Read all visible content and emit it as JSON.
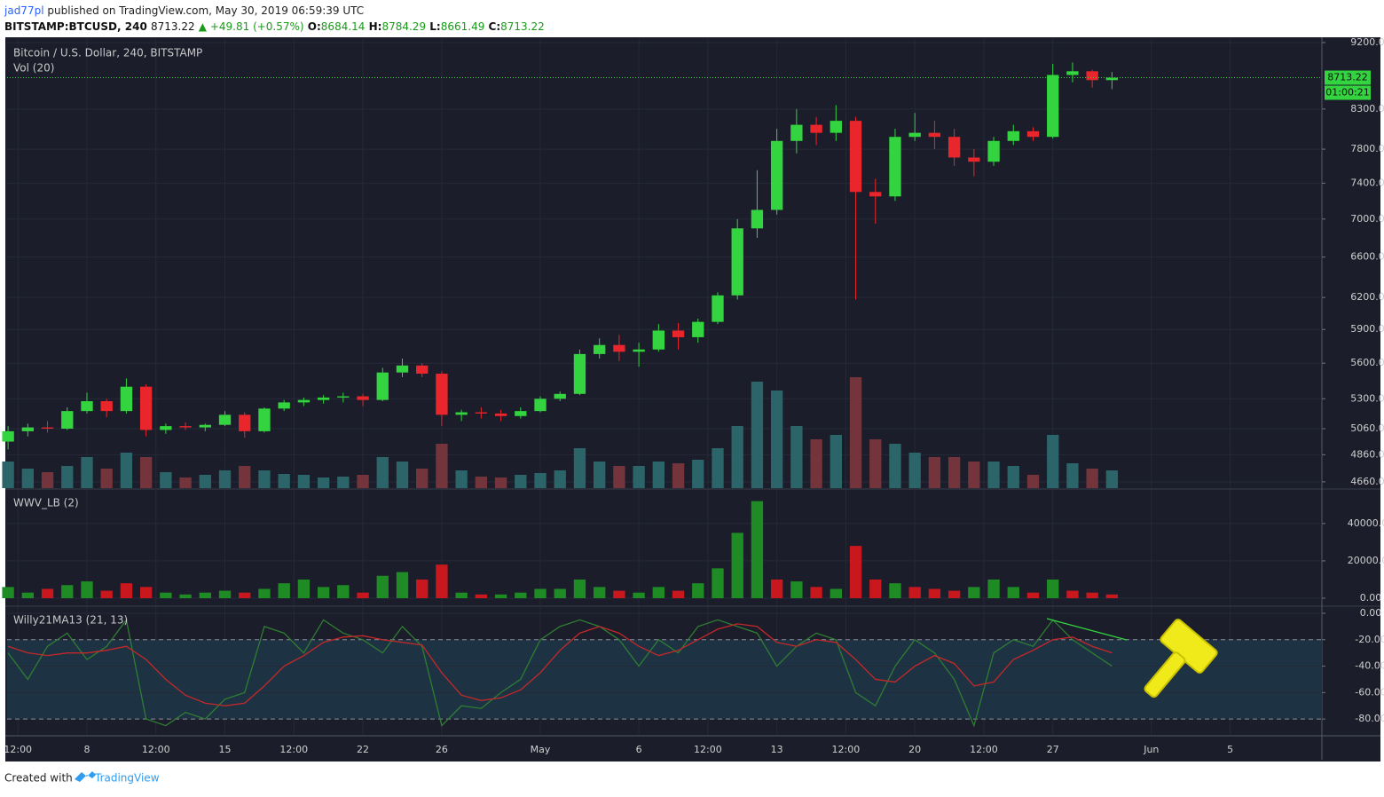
{
  "header": {
    "author": "jad77pl",
    "published": "published on TradingView.com, May 30, 2019 06:59:39 UTC",
    "symbol": "BITSTAMP:BTCUSD, 240",
    "price": "8713.22",
    "change": "▲ +49.81 (+0.57%)",
    "ohlc": [
      {
        "label": "O:",
        "value": "8684.14"
      },
      {
        "label": "H:",
        "value": "8784.29"
      },
      {
        "label": "L:",
        "value": "8661.49"
      },
      {
        "label": "C:",
        "value": "8713.22"
      }
    ]
  },
  "footer": {
    "created": "Created with",
    "brand": "TradingView"
  },
  "chart_data": [
    {
      "type": "candlestick",
      "title": "Bitcoin / U.S. Dollar, 240, BITSTAMP",
      "volume_label": "Vol (20)",
      "log": true,
      "grid": true,
      "up_color": "#33d43f",
      "down_color": "#e8262c",
      "volume_up_color": "#2b6469",
      "volume_down_color": "#74343c",
      "x": [
        4,
        5,
        6,
        7,
        8,
        9,
        10,
        11,
        12,
        13,
        14,
        15,
        16,
        17,
        18,
        19,
        20,
        21,
        22,
        23,
        24,
        25,
        26,
        27,
        28,
        29,
        30,
        31,
        32,
        33,
        34,
        35,
        36,
        37,
        38,
        39,
        40,
        41,
        42,
        43,
        44,
        45,
        46,
        47,
        48,
        49,
        50,
        51,
        52,
        53,
        54,
        55,
        56,
        57,
        58,
        59,
        60
      ],
      "open": [
        4960,
        5040,
        5070,
        5060,
        5200,
        5280,
        5200,
        5400,
        5050,
        5080,
        5070,
        5090,
        5170,
        5040,
        5220,
        5270,
        5290,
        5310,
        5320,
        5290,
        5520,
        5580,
        5510,
        5170,
        5190,
        5180,
        5160,
        5200,
        5300,
        5340,
        5680,
        5760,
        5700,
        5720,
        5890,
        5830,
        5970,
        6220,
        6900,
        7100,
        7900,
        8100,
        8000,
        8150,
        7300,
        7250,
        7950,
        8000,
        7950,
        7700,
        7650,
        7900,
        8020,
        7950,
        8750,
        8800,
        8680
      ],
      "high": [
        5080,
        5100,
        5120,
        5230,
        5350,
        5300,
        5470,
        5420,
        5100,
        5110,
        5100,
        5200,
        5190,
        5230,
        5290,
        5310,
        5330,
        5350,
        5340,
        5560,
        5640,
        5600,
        5530,
        5210,
        5230,
        5210,
        5230,
        5320,
        5360,
        5720,
        5820,
        5850,
        5780,
        5950,
        5960,
        6000,
        6250,
        7000,
        7550,
        8050,
        8300,
        8200,
        8350,
        8200,
        7450,
        8050,
        8250,
        8150,
        8050,
        7800,
        7950,
        8100,
        8070,
        8900,
        8920,
        8820,
        8790
      ],
      "low": [
        4900,
        5000,
        5030,
        5050,
        5180,
        5150,
        5180,
        5000,
        5020,
        5050,
        5040,
        5080,
        4990,
        5030,
        5200,
        5240,
        5260,
        5270,
        5240,
        5280,
        5480,
        5480,
        5080,
        5120,
        5140,
        5120,
        5140,
        5190,
        5280,
        5330,
        5640,
        5620,
        5570,
        5700,
        5720,
        5780,
        5950,
        6180,
        6800,
        7050,
        7750,
        7850,
        7900,
        6180,
        6950,
        7200,
        7900,
        7800,
        7600,
        7480,
        7600,
        7850,
        7900,
        7930,
        8650,
        8580,
        8560
      ],
      "close": [
        5040,
        5070,
        5060,
        5200,
        5280,
        5200,
        5400,
        5050,
        5080,
        5070,
        5090,
        5170,
        5040,
        5220,
        5270,
        5290,
        5310,
        5320,
        5290,
        5520,
        5580,
        5510,
        5170,
        5190,
        5180,
        5160,
        5200,
        5300,
        5340,
        5680,
        5760,
        5700,
        5720,
        5890,
        5830,
        5970,
        6220,
        6900,
        7100,
        7900,
        8100,
        8000,
        8150,
        7300,
        7250,
        7950,
        8000,
        7950,
        7700,
        7650,
        7900,
        8020,
        7950,
        8750,
        8800,
        8680,
        8713.22
      ],
      "volume": [
        3000,
        2200,
        1800,
        2500,
        3500,
        2200,
        4000,
        3500,
        1800,
        1200,
        1500,
        2000,
        2500,
        2000,
        1600,
        1500,
        1200,
        1300,
        1500,
        3500,
        3000,
        2200,
        5000,
        2000,
        1300,
        1200,
        1500,
        1700,
        2000,
        4500,
        3000,
        2500,
        2500,
        3000,
        2800,
        3200,
        4500,
        7000,
        12000,
        11000,
        7000,
        5500,
        6000,
        12500,
        5500,
        5000,
        4000,
        3500,
        3500,
        3000,
        3000,
        2500,
        1500,
        6000,
        2800,
        2200,
        2000
      ],
      "ylim": [
        4615,
        9250
      ],
      "yticks": [
        {
          "value": 9200,
          "label": "9200.00"
        },
        {
          "value": 8300,
          "label": "8300.00"
        },
        {
          "value": 7800,
          "label": "7800.00"
        },
        {
          "value": 7400,
          "label": "7400.00"
        },
        {
          "value": 7000,
          "label": "7000.00"
        },
        {
          "value": 6600,
          "label": "6600.00"
        },
        {
          "value": 6200,
          "label": "6200.00"
        },
        {
          "value": 5900,
          "label": "5900.00"
        },
        {
          "value": 5600,
          "label": "5600.00"
        },
        {
          "value": 5300,
          "label": "5300.00"
        },
        {
          "value": 5060,
          "label": "5060.00"
        },
        {
          "value": 4860,
          "label": "4860.00"
        },
        {
          "value": 4660,
          "label": "4660.00"
        }
      ],
      "xlim": [
        3.95,
        70.65
      ],
      "xticks": [
        {
          "value": 4.5,
          "label": "12:00"
        },
        {
          "value": 8,
          "label": "8"
        },
        {
          "value": 11.5,
          "label": "12:00"
        },
        {
          "value": 15,
          "label": "15"
        },
        {
          "value": 18.5,
          "label": "12:00"
        },
        {
          "value": 22,
          "label": "22"
        },
        {
          "value": 26,
          "label": "26"
        },
        {
          "value": 31,
          "label": "May"
        },
        {
          "value": 36,
          "label": "6"
        },
        {
          "value": 39.5,
          "label": "12:00"
        },
        {
          "value": 43,
          "label": "13"
        },
        {
          "value": 46.5,
          "label": "12:00"
        },
        {
          "value": 50,
          "label": "20"
        },
        {
          "value": 53.5,
          "label": "12:00"
        },
        {
          "value": 57,
          "label": "27"
        },
        {
          "value": 62,
          "label": "Jun"
        },
        {
          "value": 66,
          "label": "5"
        }
      ],
      "last_price": {
        "value": 8713.22,
        "label": "8713.22"
      },
      "countdown": "01:00:21"
    },
    {
      "type": "bar",
      "title": "WWV_LB (2)",
      "grid": true,
      "values": [
        6000,
        3000,
        5000,
        7000,
        9000,
        4000,
        8000,
        6000,
        3000,
        2000,
        3000,
        4000,
        3000,
        5000,
        8000,
        10000,
        6000,
        7000,
        3000,
        12000,
        14000,
        10000,
        18000,
        3000,
        2000,
        2000,
        3000,
        5000,
        5000,
        10000,
        6000,
        4000,
        3000,
        6000,
        4000,
        8000,
        16000,
        35000,
        52000,
        10000,
        9000,
        6000,
        5000,
        28000,
        10000,
        8000,
        6000,
        5000,
        4000,
        6000,
        10000,
        6000,
        3000,
        10000,
        4000,
        3000,
        2000
      ],
      "colors": [
        "#1f8b24",
        "#1f8b24",
        "#c8181e",
        "#1f8b24",
        "#1f8b24",
        "#c8181e",
        "#c8181e",
        "#c8181e",
        "#1f8b24",
        "#1f8b24",
        "#1f8b24",
        "#1f8b24",
        "#c8181e",
        "#1f8b24",
        "#1f8b24",
        "#1f8b24",
        "#1f8b24",
        "#1f8b24",
        "#c8181e",
        "#1f8b24",
        "#1f8b24",
        "#c8181e",
        "#c8181e",
        "#1f8b24",
        "#c8181e",
        "#1f8b24",
        "#1f8b24",
        "#1f8b24",
        "#1f8b24",
        "#1f8b24",
        "#1f8b24",
        "#c8181e",
        "#1f8b24",
        "#1f8b24",
        "#c8181e",
        "#1f8b24",
        "#1f8b24",
        "#1f8b24",
        "#1f8b24",
        "#c8181e",
        "#1f8b24",
        "#c8181e",
        "#1f8b24",
        "#c8181e",
        "#c8181e",
        "#1f8b24",
        "#c8181e",
        "#c8181e",
        "#c8181e",
        "#1f8b24",
        "#1f8b24",
        "#1f8b24",
        "#c8181e",
        "#1f8b24",
        "#c8181e",
        "#c8181e",
        "#c8181e"
      ],
      "ylim": [
        -3800,
        58000
      ],
      "yticks": [
        {
          "value": 0,
          "label": "0.00"
        },
        {
          "value": 20000,
          "label": "20000.00"
        },
        {
          "value": 40000,
          "label": "40000.00"
        }
      ]
    },
    {
      "type": "line",
      "title": "Willy21MA13 (21, 13)",
      "grid": true,
      "series": [
        {
          "color": "#2f7d33",
          "values": [
            -30,
            -50,
            -25,
            -15,
            -35,
            -25,
            -5,
            -80,
            -85,
            -75,
            -80,
            -65,
            -60,
            -10,
            -15,
            -30,
            -5,
            -15,
            -20,
            -30,
            -10,
            -25,
            -85,
            -70,
            -72,
            -60,
            -50,
            -20,
            -10,
            -5,
            -10,
            -20,
            -40,
            -20,
            -30,
            -10,
            -5,
            -10,
            -15,
            -40,
            -25,
            -15,
            -20,
            -60,
            -70,
            -40,
            -20,
            -30,
            -50,
            -85,
            -30,
            -20,
            -25,
            -5,
            -20,
            -30,
            -40
          ]
        },
        {
          "color": "#c62828",
          "values": [
            -25,
            -30,
            -32,
            -30,
            -30,
            -28,
            -25,
            -35,
            -50,
            -62,
            -68,
            -70,
            -68,
            -55,
            -40,
            -32,
            -22,
            -18,
            -17,
            -20,
            -22,
            -24,
            -45,
            -62,
            -66,
            -64,
            -58,
            -45,
            -28,
            -15,
            -10,
            -15,
            -25,
            -32,
            -28,
            -20,
            -12,
            -8,
            -10,
            -22,
            -25,
            -20,
            -22,
            -35,
            -50,
            -52,
            -40,
            -32,
            -38,
            -55,
            -52,
            -35,
            -28,
            -20,
            -18,
            -25,
            -30
          ]
        }
      ],
      "band": [
        -80,
        -20
      ],
      "band_color": "#1d3344",
      "ylim": [
        -92,
        4.7
      ],
      "yticks": [
        {
          "value": 0,
          "label": "0.00"
        },
        {
          "value": -20,
          "label": "-20.00"
        },
        {
          "value": -40,
          "label": "-40.00"
        },
        {
          "value": -60,
          "label": "-60.00"
        },
        {
          "value": -80,
          "label": "-80.00"
        }
      ]
    }
  ]
}
